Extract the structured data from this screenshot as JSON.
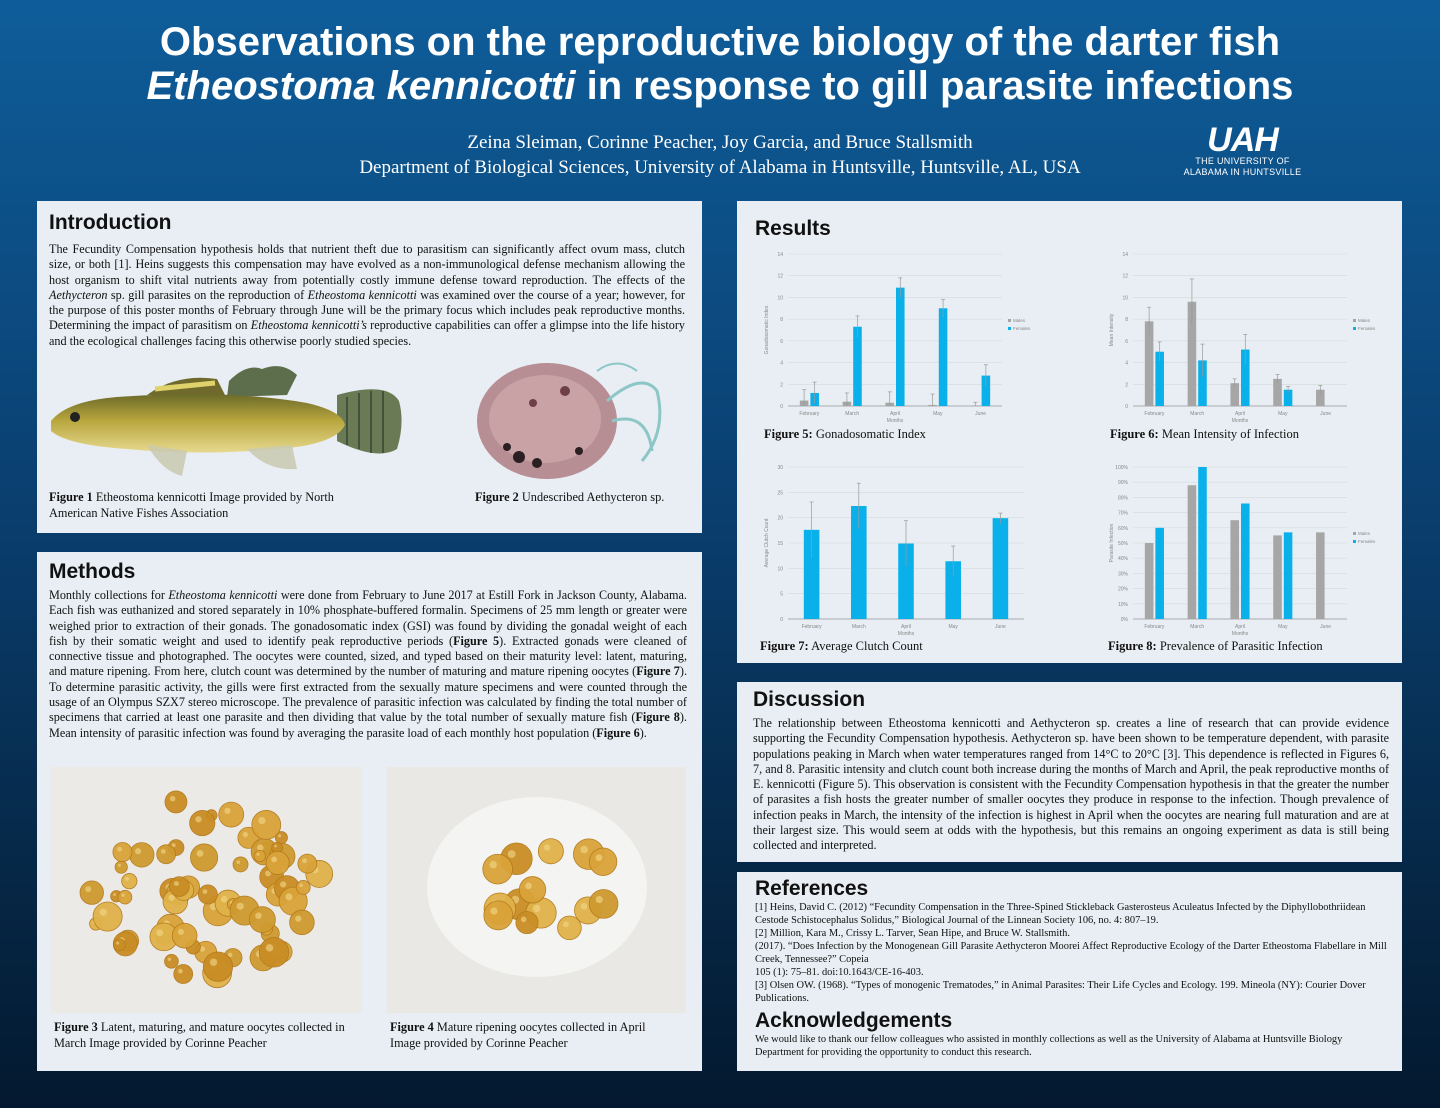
{
  "header": {
    "title_line1": "Observations on the reproductive biology of the darter fish",
    "title_line2_italic": "Etheostoma kennicotti",
    "title_line2_rest": " in response to gill parasite infections",
    "authors": "Zeina Sleiman, Corinne Peacher, Joy Garcia, and Bruce Stallsmith",
    "affiliation": "Department of Biological Sciences, University of Alabama in Huntsville, Huntsville, AL, USA",
    "logo_mark": "UAH",
    "logo_line1": "THE UNIVERSITY OF",
    "logo_line2": "ALABAMA IN HUNTSVILLE"
  },
  "introduction": {
    "heading": "Introduction",
    "p1": "The Fecundity Compensation hypothesis holds that nutrient theft due to parasitism can significantly affect ovum mass, clutch size, or both [1]. Heins suggests this compensation may have evolved as a non-immunological defense mechanism allowing the host organism to shift vital nutrients away from potentially costly immune defense toward reproduction. The effects of the ",
    "i1": "Aethycteron",
    "p2": " sp. gill parasites on the reproduction of ",
    "i2": "Etheostoma kennicotti",
    "p3": " was examined over the course of a year; however, for the purpose of this poster months of February through June will be the primary focus which includes peak reproductive months. Determining the impact of parasitism on ",
    "i3": "Etheostoma kennicotti’s",
    "p4": " reproductive capabilities can offer a glimpse into the life history and the ecological challenges facing this otherwise poorly studied species.",
    "fig1_label": "Figure 1",
    "fig1_caption": " Etheostoma kennicotti Image provided by North American Native Fishes Association",
    "fig2_label": "Figure 2",
    "fig2_caption": " Undescribed Aethycteron sp."
  },
  "methods": {
    "heading": "Methods",
    "t1": "Monthly collections for ",
    "i1": "Etheostoma kennicotti",
    "t2": "  were done from February to June 2017 at Estill Fork in Jackson County, Alabama. Each fish was euthanized and stored separately in 10% phosphate-buffered formalin. Specimens of 25 mm length or greater were weighed prior to extraction of their gonads. The gonadosomatic index (GSI) was found by dividing the gonadal weight of each fish by their somatic weight and used to identify peak reproductive periods (",
    "r1": "Figure 5",
    "t3": "). Extracted gonads were cleaned of connective tissue and photographed. The oocytes were counted, sized, and typed based on their maturity level: latent, maturing, and mature ripening.  From here, clutch count was determined by the number of maturing and mature ripening oocytes (",
    "r2": "Figure 7",
    "t4": "). To determine parasitic activity, the gills were first extracted from the sexually mature specimens and were counted through the usage of an Olympus SZX7 stereo microscope. The prevalence of parasitic infection was calculated by finding the total number of specimens that carried at least one parasite and then dividing that value by the total number of sexually mature fish (",
    "r3": "Figure 8",
    "t5": "). Mean intensity of parasitic infection was found by averaging the parasite load of each monthly host population (",
    "r4": "Figure 6",
    "t6": ").",
    "fig3_label": "Figure 3",
    "fig3_caption": " Latent, maturing, and mature oocytes collected in March Image provided by Corinne Peacher",
    "fig4_label": "Figure 4",
    "fig4_caption": " Mature ripening oocytes collected in April Image provided by Corinne Peacher"
  },
  "results": {
    "heading": "Results",
    "fig5_label": "Figure 5:",
    "fig5_caption": " Gonadosomatic Index",
    "fig6_label": "Figure 6:",
    "fig6_caption": " Mean Intensity of Infection",
    "fig7_label": "Figure 7:",
    "fig7_caption": " Average Clutch Count",
    "fig8_label": "Figure 8:",
    "fig8_caption": " Prevalence of Parasitic Infection"
  },
  "discussion": {
    "heading": "Discussion",
    "text": "The relationship between Etheostoma kennicotti and Aethycteron sp. creates a line of research that can provide evidence supporting the Fecundity Compensation hypothesis. Aethycteron sp. have been shown to be temperature dependent, with parasite populations peaking in March when water temperatures ranged from 14°C to 20°C [3]. This dependence is reflected in Figures 6, 7, and 8. Parasitic intensity and clutch count both increase during the months of March and April, the peak reproductive months of E. kennicotti (Figure 5). This observation is consistent with the Fecundity Compensation hypothesis in that the greater the number of parasites a fish hosts the greater number of smaller oocytes they produce in response to the infection. Though prevalence of infection peaks in March, the intensity of the infection is highest in April when the oocytes are nearing full maturation and are at their largest size. This would seem at odds with the hypothesis, but this remains an ongoing experiment as data is still being collected and interpreted."
  },
  "references": {
    "heading": "References",
    "r1": "[1] Heins, David C. (2012) “Fecundity Compensation in the Three-Spined Stickleback Gasterosteus Aculeatus Infected by the Diphyllobothriidean Cestode Schistocephalus Solidus,” Biological Journal of the Linnean Society 106, no. 4: 807–19.",
    "r2": "[2] Million, Kara M., Crissy L. Tarver, Sean Hipe, and Bruce W. Stallsmith.",
    "r2b": "(2017). “Does Infection by the Monogenean Gill Parasite Aethycteron Moorei Affect Reproductive Ecology of the Darter Etheostoma Flabellare in Mill Creek, Tennessee?” Copeia",
    "r2c": "105 (1): 75–81. doi:10.1643/CE-16-403.",
    "r3": "[3] Olsen OW. (1968). “Types of monogenic Trematodes,” in Animal Parasites: Their Life Cycles and Ecology. 199.  Mineola (NY): Courier Dover Publications."
  },
  "acknowledgements": {
    "heading": "Acknowledgements",
    "text": "We would like to thank our fellow colleagues who assisted in monthly collections as well as the University of Alabama at Huntsville Biology Department for providing the opportunity to conduct this research."
  },
  "colors": {
    "males": "#a6a6a6",
    "females": "#0ab0ea"
  },
  "chart_data": [
    {
      "id": "fig5",
      "type": "bar",
      "categories": [
        "February",
        "March",
        "April",
        "May",
        "June"
      ],
      "xlabel": "Months",
      "ylabel": "Gonadosomatic Index",
      "ylim": [
        0,
        14
      ],
      "yticks": [
        "0",
        "2",
        "4",
        "6",
        "8",
        "10",
        "12",
        "14"
      ],
      "legend_position": "right",
      "series": [
        {
          "name": "Males",
          "values": [
            0.5,
            0.4,
            0.3,
            0.1,
            0.05
          ],
          "errors": [
            1.0,
            0.8,
            1.0,
            1.0,
            0.3
          ]
        },
        {
          "name": "Females",
          "values": [
            1.2,
            7.3,
            10.9,
            9.0,
            2.8
          ],
          "errors": [
            1.0,
            1.0,
            0.9,
            0.8,
            1.0
          ]
        }
      ]
    },
    {
      "id": "fig6",
      "type": "bar",
      "categories": [
        "February",
        "March",
        "April",
        "May",
        "June"
      ],
      "xlabel": "Months",
      "ylabel": "Mean Intensity",
      "ylim": [
        0,
        14
      ],
      "yticks": [
        "0",
        "2",
        "4",
        "6",
        "8",
        "10",
        "12",
        "14"
      ],
      "legend_position": "right",
      "series": [
        {
          "name": "Males",
          "values": [
            7.8,
            9.6,
            2.1,
            2.5,
            1.5
          ],
          "errors": [
            1.3,
            2.1,
            0.4,
            0.4,
            0.4
          ]
        },
        {
          "name": "Females",
          "values": [
            5.0,
            4.2,
            5.2,
            1.5,
            0
          ],
          "errors": [
            0.9,
            1.5,
            1.4,
            0.3,
            0
          ]
        }
      ]
    },
    {
      "id": "fig7",
      "type": "bar",
      "categories": [
        "February",
        "March",
        "April",
        "May",
        "June"
      ],
      "xlabel": "Months",
      "ylabel": "Average Clutch Count",
      "ylim": [
        0,
        30
      ],
      "yticks": [
        "0",
        "5",
        "10",
        "15",
        "20",
        "25",
        "30"
      ],
      "legend_position": "none",
      "series": [
        {
          "name": "",
          "values": [
            17.6,
            22.3,
            14.9,
            11.4,
            19.9
          ],
          "errors": [
            5.5,
            4.5,
            4.5,
            3.0,
            1.0
          ]
        }
      ]
    },
    {
      "id": "fig8",
      "type": "bar",
      "categories": [
        "February",
        "March",
        "April",
        "May",
        "June"
      ],
      "xlabel": "Months",
      "ylabel": "Parasite Infection",
      "ylim": [
        0,
        100
      ],
      "yticks": [
        "0%",
        "10%",
        "20%",
        "30%",
        "40%",
        "50%",
        "60%",
        "70%",
        "80%",
        "90%",
        "100%"
      ],
      "legend_position": "right",
      "series": [
        {
          "name": "Males",
          "values": [
            50,
            88,
            65,
            55,
            57
          ]
        },
        {
          "name": "Females",
          "values": [
            60,
            100,
            76,
            57,
            0
          ]
        }
      ]
    }
  ]
}
